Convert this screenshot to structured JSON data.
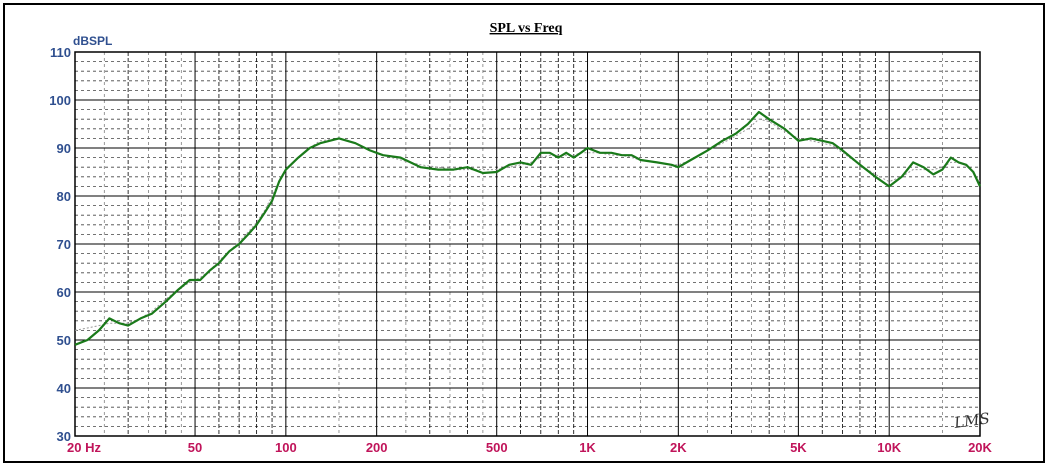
{
  "chart_data": {
    "type": "line",
    "title": "SPL vs Freq",
    "ylabel": "dBSPL",
    "xscale": "log",
    "xlim": [
      20,
      20000
    ],
    "ylim": [
      30,
      110
    ],
    "y_ticks": [
      30,
      40,
      50,
      60,
      70,
      80,
      90,
      100,
      110
    ],
    "x_ticks": [
      {
        "value": 20,
        "label": "20  Hz"
      },
      {
        "value": 50,
        "label": "50"
      },
      {
        "value": 100,
        "label": "100"
      },
      {
        "value": 200,
        "label": "200"
      },
      {
        "value": 500,
        "label": "500"
      },
      {
        "value": 1000,
        "label": "1K"
      },
      {
        "value": 2000,
        "label": "2K"
      },
      {
        "value": 5000,
        "label": "5K"
      },
      {
        "value": 10000,
        "label": "10K"
      },
      {
        "value": 20000,
        "label": "20K"
      }
    ],
    "grid": true,
    "brand": "LMS",
    "colors": {
      "measured": "#1a7a1a",
      "smoothed": "#999999",
      "axis_y": "#2f4f8f",
      "axis_x": "#c0145a"
    },
    "series": [
      {
        "name": "",
        "x": [
          20,
          22,
          24,
          26,
          28,
          30,
          33,
          36,
          40,
          44,
          48,
          52,
          56,
          60,
          65,
          70,
          75,
          80,
          85,
          90,
          95,
          100,
          110,
          120,
          130,
          150,
          170,
          190,
          210,
          240,
          280,
          320,
          360,
          400,
          450,
          500,
          550,
          600,
          650,
          700,
          750,
          800,
          850,
          900,
          950,
          1000,
          1100,
          1200,
          1300,
          1400,
          1500,
          1700,
          1900,
          2000,
          2200,
          2500,
          2800,
          3100,
          3400,
          3700,
          4000,
          4500,
          5000,
          5500,
          6000,
          6500,
          7000,
          8000,
          9000,
          10000,
          11000,
          12000,
          13000,
          14000,
          15000,
          16000,
          17000,
          18000,
          19000,
          20000
        ],
        "values": [
          49,
          50,
          52,
          54.5,
          53.5,
          53,
          54.5,
          55.5,
          58,
          60.5,
          62.5,
          62.5,
          64.5,
          66,
          68.5,
          70,
          72,
          74,
          76.5,
          79,
          83,
          85.5,
          88,
          90,
          91,
          92,
          91,
          89.5,
          88.5,
          88,
          86,
          85.5,
          85.5,
          86,
          84.8,
          85,
          86.5,
          87,
          86.5,
          89,
          89,
          88,
          89,
          88,
          89,
          90,
          89,
          89,
          88.5,
          88.5,
          87.5,
          87,
          86.5,
          86,
          87.5,
          89.5,
          91.5,
          93,
          95,
          97.5,
          96,
          94,
          91.5,
          92,
          91.5,
          91,
          89.5,
          86.5,
          84,
          82,
          84,
          87,
          86,
          84.5,
          85.5,
          88,
          87,
          86.5,
          85,
          82
        ]
      },
      {
        "name": "",
        "x": [
          20,
          22,
          24,
          26,
          28,
          30,
          33,
          36,
          40,
          44,
          48,
          52,
          56,
          60,
          65,
          70,
          75,
          80,
          85,
          90,
          95,
          100,
          110,
          120,
          130,
          150,
          170,
          190,
          210,
          240,
          280,
          320,
          360,
          400,
          450,
          500,
          550,
          600,
          650,
          700,
          750,
          800,
          850,
          900,
          950,
          1000,
          1100,
          1200,
          1300,
          1400,
          1500,
          1700,
          1900,
          2000,
          2200,
          2500,
          2800,
          3100,
          3400,
          3700,
          4000,
          4500,
          5000,
          5500,
          6000,
          6500,
          7000,
          8000,
          9000,
          10000,
          11000,
          12000,
          13000,
          14000,
          15000,
          16000,
          17000,
          18000,
          19000,
          20000
        ],
        "values": [
          52,
          52.5,
          53,
          53.5,
          53.5,
          53.5,
          54.5,
          56,
          58.5,
          60.5,
          62,
          63,
          64.5,
          66.5,
          68.5,
          70.5,
          72.5,
          74.5,
          77,
          80,
          83,
          85.5,
          88,
          90,
          91.5,
          92,
          91,
          89.5,
          88.5,
          87.5,
          86.5,
          86,
          85.5,
          85.5,
          85.5,
          85.5,
          86,
          86.5,
          87,
          88,
          88.5,
          88.5,
          88.5,
          88.5,
          89,
          89,
          89,
          88.5,
          88.5,
          88,
          87.5,
          87,
          86.5,
          86.5,
          87.5,
          89.5,
          91,
          92.5,
          94,
          96,
          95.5,
          93.5,
          92,
          91.5,
          91,
          90.5,
          89,
          86.5,
          84.5,
          83,
          84,
          85.5,
          85.5,
          85.5,
          86,
          87,
          87,
          86.5,
          85,
          83
        ]
      }
    ]
  }
}
